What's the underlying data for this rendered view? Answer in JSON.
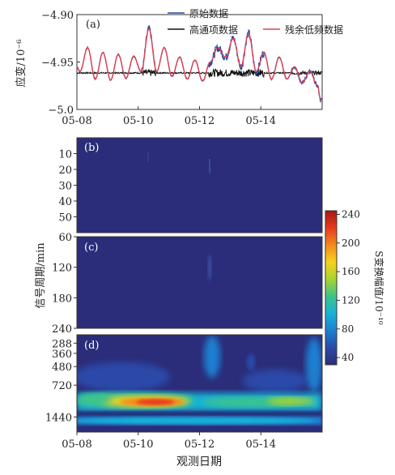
{
  "chart_data": [
    {
      "type": "line",
      "panel_label": "(a)",
      "ylabel": "应变/10⁻⁶",
      "ylim": [
        -5.0,
        -4.9
      ],
      "yticks": [
        -4.9,
        -4.95,
        -5.0
      ],
      "ytick_labels": [
        "−4.90",
        "−4.95",
        "−5.0"
      ],
      "xlim": [
        8,
        16
      ],
      "xticks": [
        8,
        10,
        12,
        14
      ],
      "xtick_labels": [
        "05-08",
        "05-10",
        "05-12",
        "05-14"
      ],
      "legend_position": "top-right",
      "series": [
        {
          "name": "原始数据",
          "color": "#1f4fa8",
          "kind": "raw"
        },
        {
          "name": "高通项数据",
          "color": "#111111",
          "kind": "highpass"
        },
        {
          "name": "残余低频数据",
          "color": "#e04050",
          "kind": "lowfreq"
        }
      ],
      "lowfreq_anchor_x": [
        8.0,
        8.1,
        8.35,
        8.6,
        8.85,
        9.1,
        9.35,
        9.6,
        9.85,
        10.1,
        10.35,
        10.6,
        10.85,
        11.1,
        11.35,
        11.6,
        11.85,
        12.1,
        12.35,
        12.6,
        12.85,
        13.1,
        13.35,
        13.6,
        13.85,
        14.1,
        14.35,
        14.6,
        14.85,
        15.1,
        15.35,
        15.6,
        15.85,
        15.95
      ],
      "lowfreq_anchor_y": [
        -4.955,
        -4.96,
        -4.935,
        -4.968,
        -4.94,
        -4.969,
        -4.942,
        -4.967,
        -4.944,
        -4.96,
        -4.915,
        -4.96,
        -4.935,
        -4.965,
        -4.945,
        -4.968,
        -4.948,
        -4.97,
        -4.95,
        -4.935,
        -4.945,
        -4.925,
        -4.955,
        -4.92,
        -4.96,
        -4.94,
        -4.968,
        -4.945,
        -4.968,
        -4.955,
        -4.972,
        -4.96,
        -4.975,
        -4.99
      ],
      "highpass_baseline": -4.9615
    },
    {
      "type": "heatmap",
      "panel_label": "(b)",
      "ylim": [
        0,
        60
      ],
      "yticks": [
        10,
        20,
        30,
        40,
        50
      ],
      "ytick_labels": [
        "10",
        "20",
        "30",
        "40",
        "50"
      ],
      "xlim": [
        8,
        16
      ]
    },
    {
      "type": "heatmap",
      "panel_label": "(c)",
      "ylim": [
        60,
        240
      ],
      "yticks": [
        60,
        120,
        180,
        240
      ],
      "ytick_labels": [
        "60",
        "120",
        "180",
        "240"
      ],
      "ylabel": "信号周期/min",
      "xlim": [
        8,
        16
      ]
    },
    {
      "type": "heatmap",
      "panel_label": "(d)",
      "yticks": [
        288,
        360,
        480,
        720,
        1440
      ],
      "ytick_labels": [
        "288",
        "360",
        "480",
        "720",
        "1440"
      ],
      "xlim": [
        8,
        16
      ],
      "xticks": [
        8,
        10,
        12,
        14
      ],
      "xtick_labels": [
        "05-08",
        "05-10",
        "05-12",
        "05-14"
      ],
      "xlabel": "观测日期"
    }
  ],
  "colorbar": {
    "label": "S变换幅值/10⁻¹⁰",
    "range": [
      30,
      245
    ],
    "ticks": [
      40,
      80,
      120,
      160,
      200,
      240
    ],
    "tick_labels": [
      "40",
      "80",
      "120",
      "160",
      "200",
      "240"
    ],
    "colors": [
      "#2b2d7a",
      "#2c4aa8",
      "#1e7fd0",
      "#19b2d6",
      "#3cc48a",
      "#a7d430",
      "#f5d21c",
      "#f58a1a",
      "#e8391d",
      "#a81616"
    ]
  }
}
